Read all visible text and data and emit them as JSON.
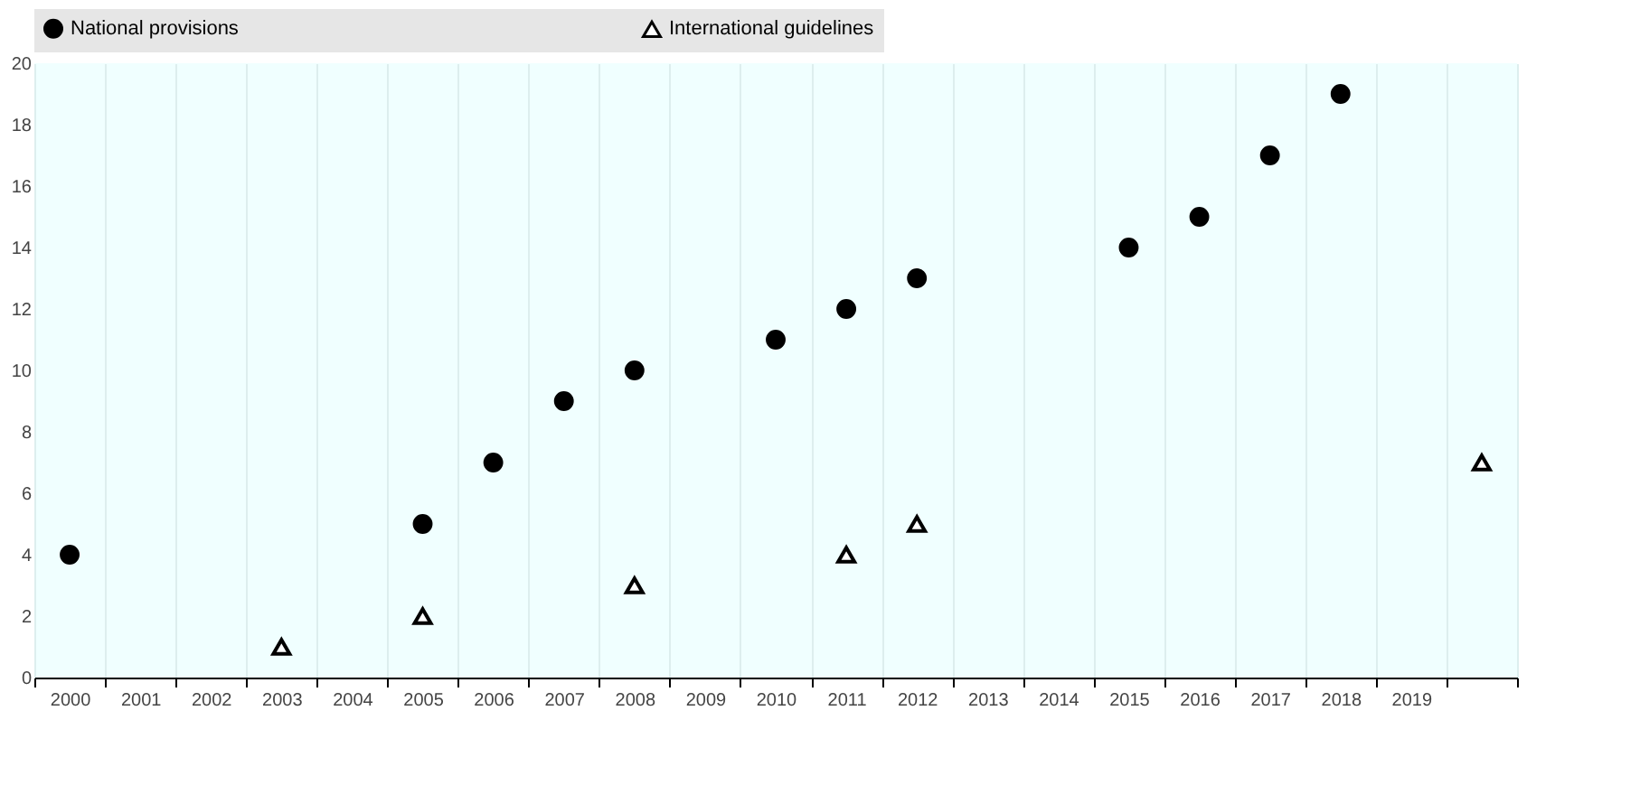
{
  "chart_data": {
    "type": "scatter",
    "categories": [
      "2000",
      "2001",
      "2002",
      "2003",
      "2004",
      "2005",
      "2006",
      "2007",
      "2008",
      "2009",
      "2010",
      "2011",
      "2012",
      "2013",
      "2014",
      "2015",
      "2016",
      "2017",
      "2018",
      "2019",
      null
    ],
    "series": [
      {
        "name": "National provisions",
        "color": "#000000",
        "marker": "circle",
        "values": [
          4,
          null,
          null,
          null,
          null,
          5,
          7,
          9,
          10,
          null,
          11,
          12,
          13,
          null,
          null,
          14,
          15,
          17,
          19,
          null,
          null
        ]
      },
      {
        "name": "International guidelines",
        "color": "#000000",
        "marker": "triangle",
        "values": [
          null,
          null,
          null,
          1,
          null,
          2,
          null,
          null,
          3,
          null,
          null,
          4,
          5,
          null,
          null,
          null,
          null,
          null,
          null,
          null,
          7
        ]
      }
    ],
    "ylim": [
      0,
      20
    ],
    "yticks": [
      0,
      2,
      4,
      6,
      8,
      10,
      12,
      14,
      16,
      18,
      20
    ],
    "grid": "x",
    "legend": "top"
  }
}
